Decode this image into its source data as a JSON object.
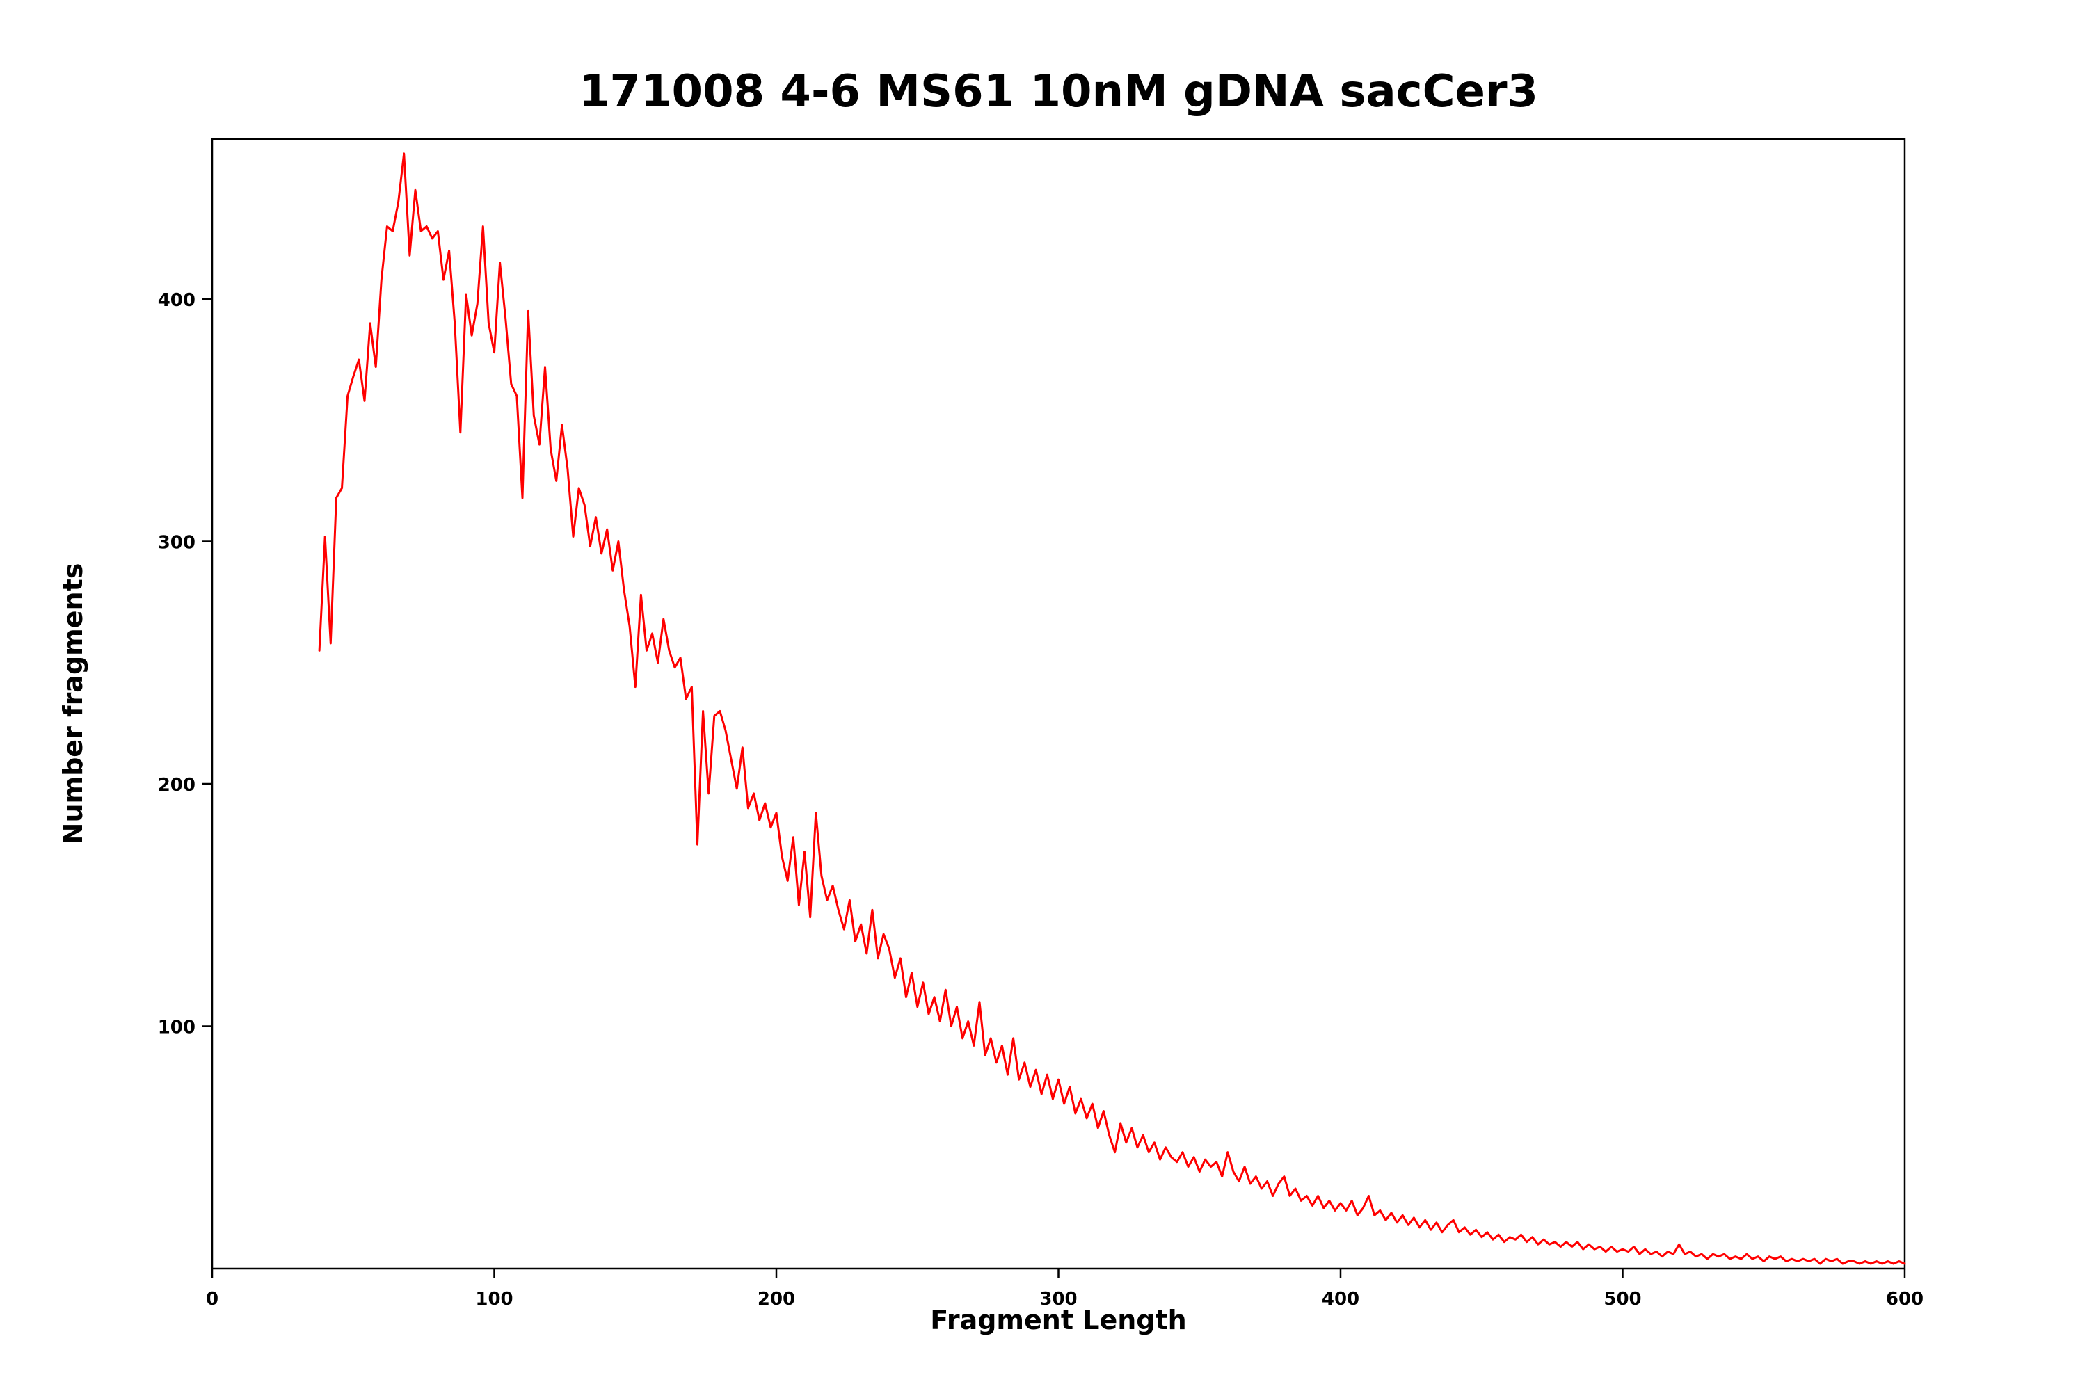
{
  "figure": {
    "title": "171008 4-6 MS61 10nM gDNA sacCer3",
    "xlabel": "Fragment Length",
    "ylabel": "Number fragments"
  },
  "chart_data": {
    "type": "line",
    "title": "171008 4-6 MS61 10nM gDNA sacCer3",
    "xlabel": "Fragment Length",
    "ylabel": "Number fragments",
    "line_color": "#ff0000",
    "background": "#ffffff",
    "grid": false,
    "legend_position": "none",
    "xlim": [
      0,
      600
    ],
    "ylim": [
      0,
      466
    ],
    "x_ticks": [
      0,
      100,
      200,
      300,
      400,
      500,
      600
    ],
    "y_ticks": [
      100,
      200,
      300,
      400
    ],
    "x_start": 38,
    "x_step": 2,
    "y": [
      255,
      302,
      258,
      318,
      322,
      360,
      368,
      375,
      358,
      390,
      372,
      408,
      430,
      428,
      440,
      460,
      418,
      445,
      428,
      430,
      425,
      428,
      408,
      420,
      390,
      345,
      402,
      385,
      398,
      430,
      390,
      378,
      415,
      392,
      365,
      360,
      318,
      395,
      352,
      340,
      372,
      338,
      325,
      348,
      330,
      302,
      322,
      315,
      298,
      310,
      295,
      305,
      288,
      300,
      280,
      265,
      240,
      278,
      255,
      262,
      250,
      268,
      255,
      248,
      252,
      235,
      240,
      175,
      230,
      196,
      228,
      230,
      222,
      210,
      198,
      215,
      190,
      196,
      185,
      192,
      182,
      188,
      170,
      160,
      178,
      150,
      172,
      145,
      188,
      162,
      152,
      158,
      148,
      140,
      152,
      135,
      142,
      130,
      148,
      128,
      138,
      132,
      120,
      128,
      112,
      122,
      108,
      118,
      105,
      112,
      102,
      115,
      100,
      108,
      95,
      102,
      92,
      110,
      88,
      95,
      85,
      92,
      80,
      95,
      78,
      85,
      75,
      82,
      72,
      80,
      70,
      78,
      68,
      75,
      64,
      70,
      62,
      68,
      58,
      65,
      55,
      48,
      60,
      52,
      58,
      50,
      55,
      48,
      52,
      45,
      50,
      46,
      44,
      48,
      42,
      46,
      40,
      45,
      42,
      44,
      38,
      48,
      40,
      36,
      42,
      35,
      38,
      33,
      36,
      30,
      35,
      38,
      30,
      33,
      28,
      30,
      26,
      30,
      25,
      28,
      24,
      27,
      24,
      28,
      22,
      25,
      30,
      22,
      24,
      20,
      23,
      19,
      22,
      18,
      21,
      17,
      20,
      16,
      19,
      15,
      18,
      20,
      15,
      17,
      14,
      16,
      13,
      15,
      12,
      14,
      11,
      13,
      12,
      14,
      11,
      13,
      10,
      12,
      10,
      11,
      9,
      11,
      9,
      11,
      8,
      10,
      8,
      9,
      7,
      9,
      7,
      8,
      7,
      9,
      6,
      8,
      6,
      7,
      5,
      7,
      6,
      10,
      6,
      7,
      5,
      6,
      4,
      6,
      5,
      6,
      4,
      5,
      4,
      6,
      4,
      5,
      3,
      5,
      4,
      5,
      3,
      4,
      3,
      4,
      3,
      4,
      2,
      4,
      3,
      4,
      2,
      3,
      3,
      2,
      3,
      2,
      3,
      2,
      3,
      2,
      3,
      2
    ]
  }
}
